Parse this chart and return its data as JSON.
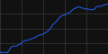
{
  "title": "",
  "background_color": "#111111",
  "plot_bg_color": "#111111",
  "line_color": "#2255dd",
  "grid_color": "#444444",
  "years": [
    1950,
    1951,
    1952,
    1953,
    1954,
    1955,
    1956,
    1957,
    1958,
    1959,
    1960,
    1961,
    1962,
    1963,
    1964,
    1965,
    1966,
    1967,
    1968,
    1969,
    1970,
    1971,
    1972,
    1973,
    1974,
    1975,
    1976,
    1977,
    1978,
    1979,
    1980,
    1981,
    1982,
    1983,
    1984,
    1985,
    1986,
    1987,
    1988,
    1989,
    1990,
    1991,
    1992,
    1993,
    1994,
    1995,
    1996,
    1997,
    1998,
    1999,
    2000,
    2001,
    2002,
    2003,
    2004,
    2005,
    2006,
    2007,
    2008,
    2009,
    2010,
    2011,
    2012,
    2013,
    2014,
    2015,
    2016,
    2017,
    2018,
    2019,
    2020,
    2021,
    2022,
    2023
  ],
  "rates": [
    2.51,
    2.51,
    2.51,
    2.51,
    2.51,
    2.51,
    3.28,
    4.92,
    6.4,
    6.7,
    6.7,
    6.7,
    7.67,
    9.0,
    9.0,
    13.5,
    13.5,
    16.25,
    16.25,
    17.1,
    17.93,
    20.18,
    21.87,
    23.67,
    26.0,
    30.92,
    34.68,
    36.77,
    39.09,
    42.56,
    47.28,
    54.49,
    64.08,
    78.84,
    100.82,
    142.31,
    194.26,
    242.61,
    299.17,
    382.57,
    502.26,
    633.05,
    711.29,
    786.22,
    827.64,
    912.83,
    1036.69,
    1140.96,
    1426.04,
    1756.23,
    2087.9,
    2299.63,
    2504.24,
    2877.65,
    2628.61,
    2320.77,
    2358.59,
    2076.19,
    1966.26,
    2156.29,
    1898.68,
    1848.14,
    1798.83,
    1868.9,
    2001.13,
    2743.39,
    3053.42,
    2951.15,
    2956.43,
    3281.09,
    3693.0,
    3743.09,
    4255.0,
    4325.0
  ],
  "xlim": [
    1950,
    2023
  ],
  "ylim": [
    2.0,
    8000.0
  ],
  "grid_nx": 5,
  "grid_ny": 4,
  "linewidth": 0.8
}
